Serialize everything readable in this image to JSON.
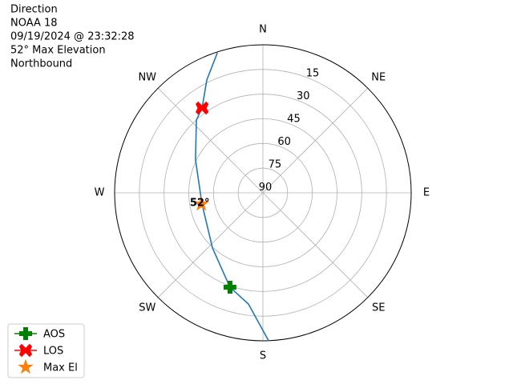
{
  "chart_data": {
    "type": "polar",
    "title_lines": [
      "Direction",
      "NOAA 18",
      "09/19/2024 @ 23:32:28",
      "52° Max Elevation",
      "Northbound"
    ],
    "rlim": [
      90,
      0
    ],
    "rticks": [
      90,
      75,
      60,
      45,
      30,
      15
    ],
    "thetaticks": [
      {
        "value": 0,
        "label": "N"
      },
      {
        "value": 45,
        "label": "NE"
      },
      {
        "value": 90,
        "label": "E"
      },
      {
        "value": 135,
        "label": "SE"
      },
      {
        "value": 180,
        "label": "S"
      },
      {
        "value": 225,
        "label": "SW"
      },
      {
        "value": 270,
        "label": "W"
      },
      {
        "value": 315,
        "label": "NW"
      }
    ],
    "grid": true,
    "legend": "lower left",
    "series": [
      {
        "color": "#1f77b4",
        "marker": "none",
        "line": true,
        "theta": [
          177.8,
          187.4,
          199.2,
          222.4,
          259.6,
          296,
          317.6,
          324.4,
          333.6,
          342
        ],
        "r": [
          0,
          21.8,
          29.2,
          44.6,
          52.4,
          44.5,
          30.1,
          26.6,
          13.4,
          0.5
        ]
      },
      {
        "name": "AOS",
        "color": "#008000",
        "marker": "plus",
        "line": true,
        "theta": [
          199.2
        ],
        "r": [
          29.2
        ]
      },
      {
        "name": "LOS",
        "color": "#ff0000",
        "marker": "x",
        "line": true,
        "theta": [
          324.4
        ],
        "r": [
          26.6
        ]
      },
      {
        "name": "Max El",
        "color": "#ff7f0e",
        "marker": "star",
        "line": false,
        "theta": [
          259.6
        ],
        "r": [
          52
        ],
        "value_labels": [
          "52°"
        ]
      }
    ]
  }
}
